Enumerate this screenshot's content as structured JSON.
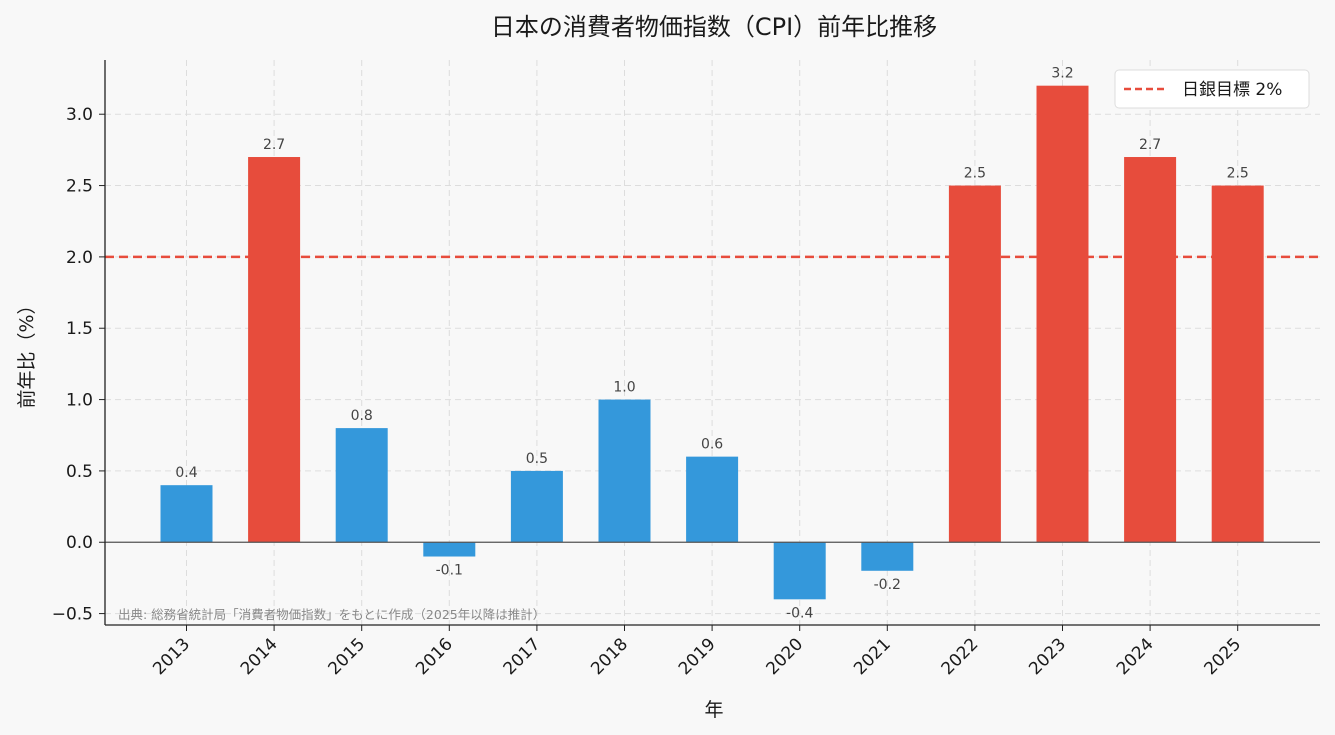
{
  "chart_data": {
    "type": "bar",
    "title": "日本の消費者物価指数（CPI）前年比推移",
    "xlabel": "年",
    "ylabel": "前年比（%）",
    "categories": [
      "2013",
      "2014",
      "2015",
      "2016",
      "2017",
      "2018",
      "2019",
      "2020",
      "2021",
      "2022",
      "2023",
      "2024",
      "2025"
    ],
    "values": [
      0.4,
      2.7,
      0.8,
      -0.1,
      0.5,
      1.0,
      0.6,
      -0.4,
      -0.2,
      2.5,
      3.2,
      2.7,
      2.5
    ],
    "data_labels": [
      "0.4",
      "2.7",
      "0.8",
      "-0.1",
      "0.5",
      "1.0",
      "0.6",
      "-0.4",
      "-0.2",
      "2.5",
      "3.2",
      "2.7",
      "2.5"
    ],
    "ylim": [
      -0.58,
      3.38
    ],
    "yticks": [
      -0.5,
      0.0,
      0.5,
      1.0,
      1.5,
      2.0,
      2.5,
      3.0
    ],
    "ytick_labels": [
      "−0.5",
      "0.0",
      "0.5",
      "1.0",
      "1.5",
      "2.0",
      "2.5",
      "3.0"
    ],
    "reference_line": {
      "value": 2.0,
      "label": "日銀目標 2%",
      "color": "#e74c3c",
      "style": "dashed"
    },
    "colors": {
      "above_target": "#e74c3c",
      "below_target": "#3498db",
      "zero_line": "#555555",
      "grid": "#dddddd"
    },
    "grid": true,
    "legend_position": "top-right",
    "source_note": "出典: 総務省統計局「消費者物価指数」をもとに作成（2025年以降は推計）"
  }
}
